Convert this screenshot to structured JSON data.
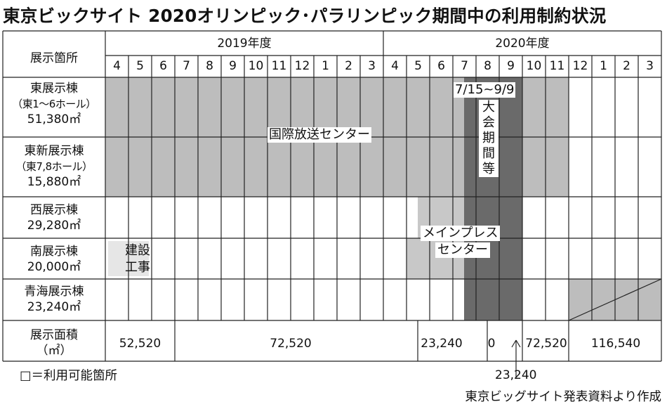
{
  "title": "東京ビックサイト 2020オリンピック･パラリンピック期間中の利用制約状況",
  "header": {
    "facility_label": "展示箇所",
    "year1": "2019年度",
    "year2": "2020年度",
    "months": [
      "4",
      "5",
      "6",
      "7",
      "8",
      "9",
      "10",
      "11",
      "12",
      "1",
      "2",
      "3",
      "4",
      "5",
      "6",
      "7",
      "8",
      "9",
      "10",
      "11",
      "12",
      "1",
      "2",
      "3"
    ]
  },
  "rows": [
    {
      "name": "東展示棟",
      "sub": "（東1～6ホール）",
      "area": "51,380㎡"
    },
    {
      "name": "東新展示棟",
      "sub": "（東7,8ホール）",
      "area": "15,880㎡"
    },
    {
      "name": "西展示棟",
      "sub": "",
      "area": "29,280㎡"
    },
    {
      "name": "南展示棟",
      "sub": "",
      "area": "20,000㎡"
    },
    {
      "name": "青海展示棟",
      "sub": "",
      "area": "23,240㎡"
    }
  ],
  "bars": {
    "ibc": "国際放送センター",
    "mpc_line1": "メインプレス",
    "mpc_line2": "センター",
    "games_dates": "7/15~9/9",
    "games_label": "大会期間等",
    "construction_line1": "建設",
    "construction_line2": "工事"
  },
  "area_row": {
    "label_line1": "展示面積",
    "label_line2": "（㎡）",
    "values": [
      "52,520",
      "72,520",
      "23,240",
      "0",
      "72,520",
      "116,540"
    ],
    "annotation": "23,240"
  },
  "legend": "□＝利用可能箇所",
  "source": "東京ビッグサイト発表資料より作成",
  "colors": {
    "ibc_gray": "#bdbdbd",
    "mpc_gray": "#c8c8c8",
    "games_dark": "#6a6a6a",
    "construction": "#e6e6e6",
    "line": "#222222"
  }
}
